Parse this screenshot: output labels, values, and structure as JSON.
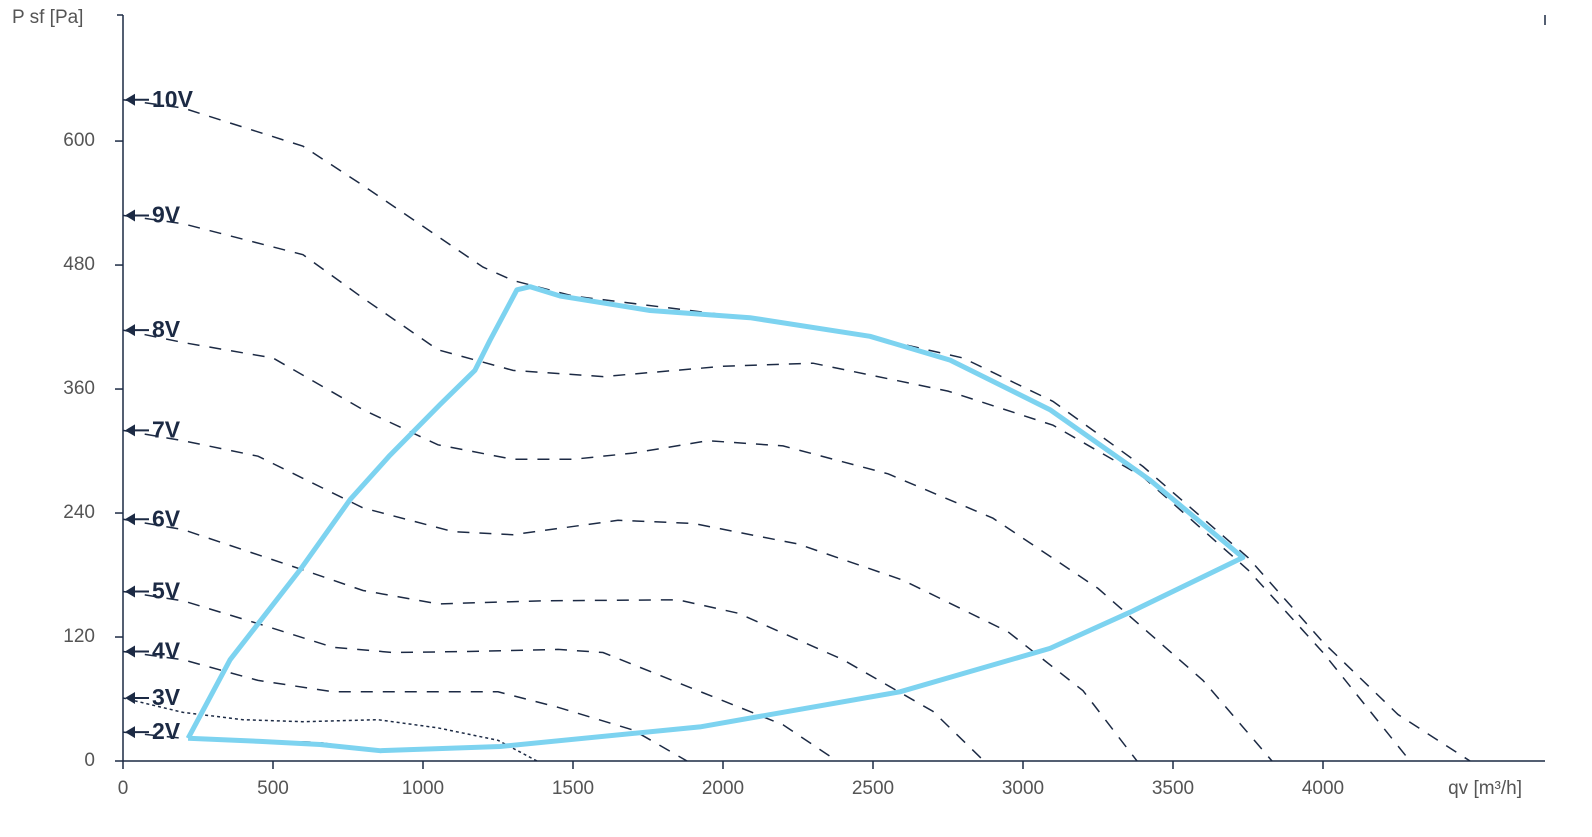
{
  "chart_data": {
    "type": "line",
    "x_label": "qv [m³/h]",
    "y_label": "P sf [Pa]",
    "xlim": [
      0,
      4740
    ],
    "ylim": [
      0,
      722
    ],
    "xticks": [
      0,
      500,
      1000,
      1500,
      2000,
      2500,
      3000,
      3500,
      4000
    ],
    "yticks": [
      0,
      120,
      240,
      360,
      480,
      600
    ],
    "series": [
      {
        "name": "10V",
        "color": "#1c2a44",
        "style": "dashed",
        "x": [
          0,
          200,
          600,
          800,
          1200,
          1300,
          1500,
          2000,
          2500,
          2800,
          3100,
          3400,
          3750,
          4000,
          4250,
          4490
        ],
        "values": [
          640,
          632,
          595,
          557,
          478,
          465,
          450,
          432,
          410,
          390,
          348,
          285,
          197,
          115,
          45,
          0
        ]
      },
      {
        "name": "9V",
        "color": "#1c2a44",
        "style": "dashed",
        "x": [
          0,
          200,
          600,
          800,
          1050,
          1300,
          1600,
          2000,
          2300,
          2750,
          3100,
          3400,
          3750,
          4000,
          4290
        ],
        "values": [
          528,
          520,
          490,
          448,
          398,
          378,
          372,
          382,
          385,
          358,
          325,
          275,
          185,
          105,
          0
        ]
      },
      {
        "name": "8V",
        "color": "#1c2a44",
        "style": "dashed",
        "x": [
          0,
          200,
          500,
          800,
          1050,
          1300,
          1500,
          1700,
          1950,
          2200,
          2550,
          2900,
          3250,
          3600,
          3830
        ],
        "values": [
          417,
          405,
          390,
          340,
          306,
          292,
          292,
          298,
          310,
          305,
          278,
          235,
          167,
          78,
          0
        ]
      },
      {
        "name": "7V",
        "color": "#1c2a44",
        "style": "dashed",
        "x": [
          0,
          200,
          450,
          800,
          1100,
          1300,
          1650,
          1900,
          2250,
          2600,
          2950,
          3200,
          3380
        ],
        "values": [
          320,
          310,
          295,
          245,
          222,
          219,
          233,
          230,
          210,
          175,
          125,
          68,
          0
        ]
      },
      {
        "name": "6V",
        "color": "#1c2a44",
        "style": "dashed",
        "x": [
          0,
          200,
          600,
          800,
          1050,
          1400,
          1850,
          2050,
          2400,
          2700,
          2870
        ],
        "values": [
          234,
          224,
          185,
          165,
          152,
          155,
          156,
          143,
          98,
          48,
          0
        ]
      },
      {
        "name": "5V",
        "color": "#1c2a44",
        "style": "dashed",
        "x": [
          0,
          200,
          450,
          700,
          900,
          1150,
          1450,
          1600,
          1900,
          2200,
          2380
        ],
        "values": [
          164,
          155,
          133,
          110,
          105,
          106,
          108,
          105,
          70,
          35,
          0
        ]
      },
      {
        "name": "4V",
        "color": "#1c2a44",
        "style": "dashed",
        "x": [
          0,
          200,
          450,
          700,
          1000,
          1250,
          1450,
          1700,
          1880
        ],
        "values": [
          106,
          98,
          78,
          67,
          67,
          67,
          52,
          30,
          0
        ]
      },
      {
        "name": "3V",
        "color": "#1c2a44",
        "style": "dotted",
        "x": [
          0,
          200,
          400,
          600,
          850,
          1050,
          1250,
          1380
        ],
        "values": [
          61,
          47,
          40,
          38,
          40,
          32,
          20,
          0
        ]
      },
      {
        "name": "2V",
        "color": "#1c2a44",
        "style": "dashed",
        "x": [
          0,
          200,
          650,
          850
        ],
        "values": [
          28,
          22,
          18,
          10
        ]
      }
    ],
    "envelope": {
      "color": "#7dd3f0",
      "x": [
        217,
        357,
        590,
        757,
        890,
        1057,
        1173,
        1223,
        1313,
        1357,
        1457,
        1757,
        2090,
        2490,
        2757,
        3090,
        3423,
        3733,
        3357,
        3090,
        2590,
        1923,
        1257,
        857,
        657,
        457,
        217
      ],
      "values": [
        22,
        98,
        185,
        253,
        296,
        345,
        378,
        407,
        456,
        459,
        450,
        436,
        429,
        411,
        388,
        340,
        272,
        197,
        144,
        109,
        67,
        33,
        14,
        10,
        16,
        19,
        22
      ]
    }
  }
}
